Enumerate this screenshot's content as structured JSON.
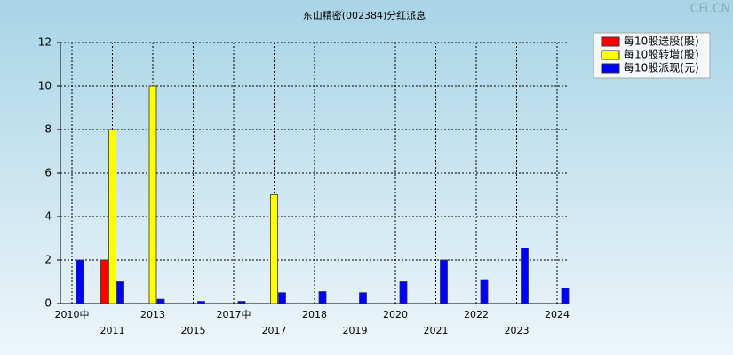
{
  "chart_data": {
    "type": "bar",
    "title": "东山精密(002384)分红派息",
    "watermark": "CFi.CN",
    "categories": [
      "2010中",
      "2011",
      "2013",
      "2015",
      "2017中",
      "2017",
      "2018",
      "2019",
      "2020",
      "2021",
      "2022",
      "2023",
      "2024"
    ],
    "series": [
      {
        "name": "每10股送股(股)",
        "color": "#ff0000",
        "values": [
          null,
          2,
          null,
          null,
          null,
          null,
          null,
          null,
          null,
          null,
          null,
          null,
          null
        ]
      },
      {
        "name": "每10股转增(股)",
        "color": "#ffff00",
        "values": [
          null,
          8,
          10,
          null,
          null,
          5,
          null,
          null,
          null,
          null,
          null,
          null,
          null
        ]
      },
      {
        "name": "每10股派现(元)",
        "color": "#0000ff",
        "values": [
          2,
          1,
          0.2,
          0.1,
          0.1,
          0.5,
          0.55,
          0.5,
          1.0,
          2.0,
          1.1,
          2.55,
          0.7
        ]
      }
    ],
    "ylim": [
      0,
      12
    ],
    "yticks": [
      0,
      2,
      4,
      6,
      8,
      10,
      12
    ],
    "grid": true,
    "legend": "top-right"
  }
}
